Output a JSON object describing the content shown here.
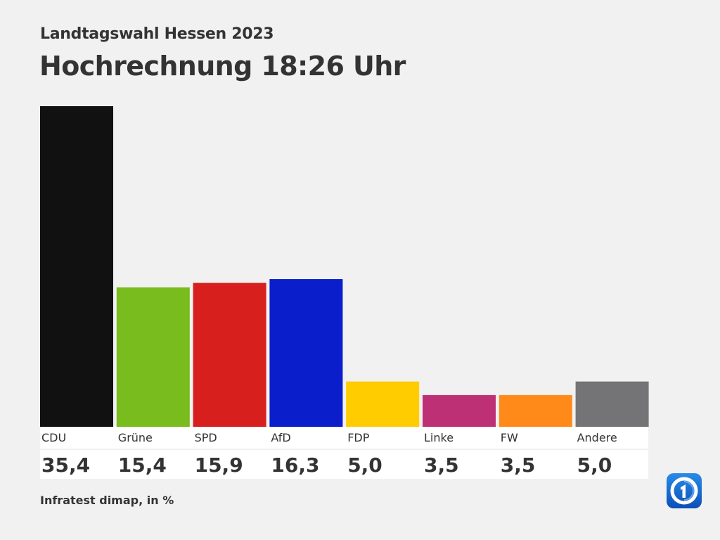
{
  "header": {
    "subtitle": "Landtagswahl Hessen 2023",
    "title": "Hochrechnung 18:26 Uhr"
  },
  "source": "Infratest dimap, in %",
  "logo": {
    "icon": "ard-one-logo-icon",
    "colors": [
      "#1a73d9",
      "#0d47a1",
      "#ffffff"
    ]
  },
  "chart_data": {
    "type": "bar",
    "title": "Hochrechnung 18:26 Uhr",
    "subtitle": "Landtagswahl Hessen 2023",
    "xlabel": "",
    "ylabel": "",
    "ylim": [
      0,
      35.4
    ],
    "grid": false,
    "categories": [
      "CDU",
      "Grüne",
      "SPD",
      "AfD",
      "FDP",
      "Linke",
      "FW",
      "Andere"
    ],
    "values": [
      35.4,
      15.4,
      15.9,
      16.3,
      5.0,
      3.5,
      3.5,
      5.0
    ],
    "value_labels": [
      "35,4",
      "15,4",
      "15,9",
      "16,3",
      "5,0",
      "3,5",
      "3,5",
      "5,0"
    ],
    "colors": [
      "#111111",
      "#78bc1e",
      "#d71f1d",
      "#0a1ecc",
      "#ffcc00",
      "#bd3075",
      "#ff8a1a",
      "#747476"
    ],
    "unit": "%"
  }
}
